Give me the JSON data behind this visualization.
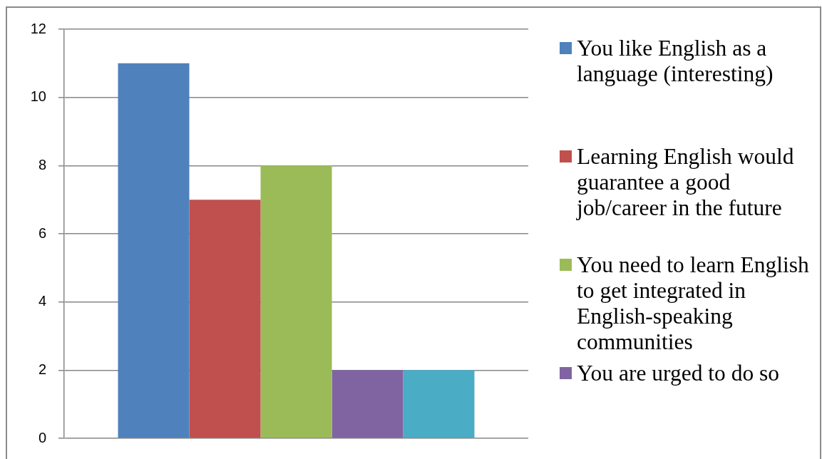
{
  "chart_data": {
    "type": "bar",
    "categories": [
      null
    ],
    "series": [
      {
        "name": "You like English as a language (interesting)",
        "color": "#4f81bd",
        "values": [
          11
        ]
      },
      {
        "name": "Learning English would guarantee a good job/career in the future",
        "color": "#c0504d",
        "values": [
          7
        ]
      },
      {
        "name": "You need to learn English to get integrated in English-speaking communities",
        "color": "#9bbb59",
        "values": [
          8
        ]
      },
      {
        "name": "You are urged to do so",
        "color": "#8064a2",
        "values": [
          2
        ]
      },
      {
        "color": "#4bacc6",
        "values": [
          2
        ]
      }
    ],
    "ylim": [
      0,
      12
    ],
    "yticks": [
      0,
      2,
      4,
      6,
      8,
      10,
      12
    ],
    "grid": "y",
    "legend": "right"
  }
}
